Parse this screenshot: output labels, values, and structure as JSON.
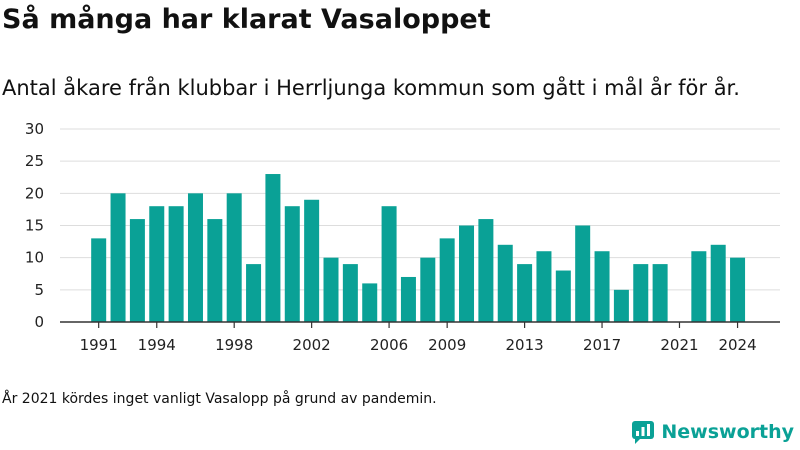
{
  "header": {
    "title": "Så många har klarat Vasaloppet",
    "subtitle": "Antal åkare från klubbar i Herrljunga kommun som gått i mål år för år."
  },
  "footer": {
    "note": "År 2021 kördes inget vanligt Vasalopp på grund av pandemin.",
    "brand": "Newsworthy"
  },
  "colors": {
    "bar": "#0aa196",
    "grid": "#dddddd",
    "axis": "#333333",
    "brand": "#0aa196"
  },
  "chart_data": {
    "type": "bar",
    "categories": [
      1991,
      1992,
      1993,
      1994,
      1995,
      1996,
      1997,
      1998,
      1999,
      2000,
      2001,
      2002,
      2003,
      2004,
      2005,
      2006,
      2007,
      2008,
      2009,
      2010,
      2011,
      2012,
      2013,
      2014,
      2015,
      2016,
      2017,
      2018,
      2019,
      2020,
      2021,
      2022,
      2023,
      2024
    ],
    "values": [
      13,
      20,
      16,
      18,
      18,
      20,
      16,
      20,
      9,
      23,
      18,
      19,
      10,
      9,
      6,
      18,
      7,
      10,
      13,
      15,
      16,
      12,
      9,
      11,
      8,
      15,
      11,
      5,
      9,
      9,
      0,
      11,
      12,
      10
    ],
    "x_tick_labels": [
      "1991",
      "1994",
      "1998",
      "2002",
      "2006",
      "2009",
      "2013",
      "2017",
      "2021",
      "2024"
    ],
    "y_ticks": [
      0,
      5,
      10,
      15,
      20,
      25,
      30
    ],
    "ylim": [
      0,
      30
    ],
    "xlabel": "",
    "ylabel": "",
    "grid": true,
    "legend": "none"
  }
}
